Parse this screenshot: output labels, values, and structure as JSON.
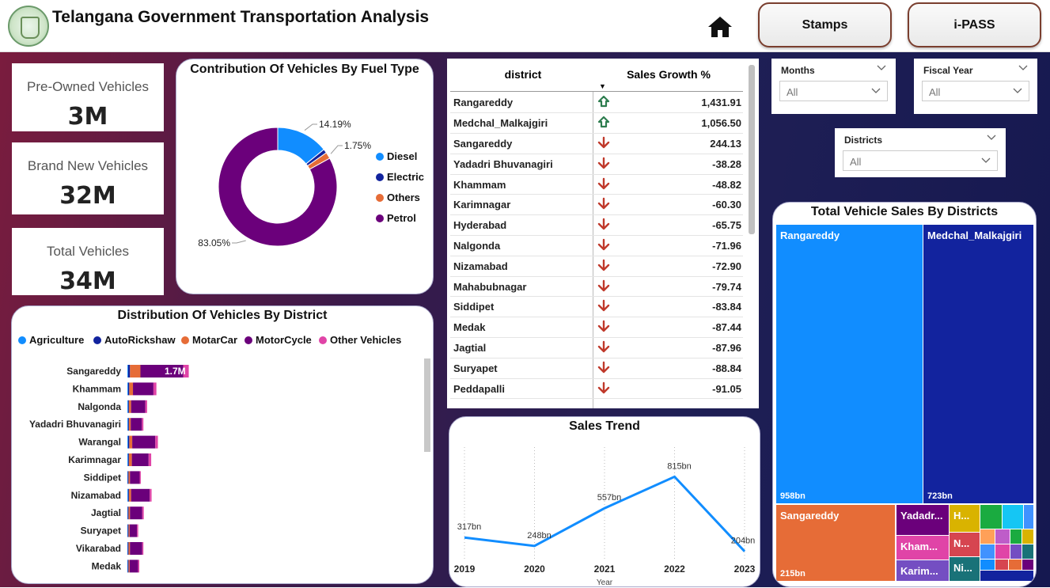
{
  "header": {
    "title": "Telangana Government Transportation Analysis",
    "buttons": {
      "stamps": "Stamps",
      "ipass": "i-PASS"
    }
  },
  "kpis": [
    {
      "label": "Pre-Owned Vehicles",
      "value": "3M"
    },
    {
      "label": "Brand New Vehicles",
      "value": "32M"
    },
    {
      "label": "Total Vehicles",
      "value": "34M"
    }
  ],
  "fuel_chart": {
    "title": "Contribution Of Vehicles By Fuel Type",
    "slices": [
      {
        "name": "Diesel",
        "percent": 14.19,
        "label": "14.19%",
        "color": "#118DFF"
      },
      {
        "name": "Electric",
        "percent": 1.1,
        "label": "",
        "color": "#12239E"
      },
      {
        "name": "Others",
        "percent": 1.75,
        "label": "1.75%",
        "color": "#E66C37"
      },
      {
        "name": "Petrol",
        "percent": 83.05,
        "label": "83.05%",
        "color": "#6B007B"
      }
    ]
  },
  "district_chart": {
    "title": "Distribution Of Vehicles By District",
    "legend": [
      {
        "name": "Agriculture",
        "color": "#118DFF"
      },
      {
        "name": "AutoRickshaw",
        "color": "#12239E"
      },
      {
        "name": "MotarCar",
        "color": "#E66C37"
      },
      {
        "name": "MotorCycle",
        "color": "#6B007B"
      },
      {
        "name": "Other Vehicles",
        "color": "#E044A7"
      }
    ],
    "data_label": "1.7M",
    "rows": [
      {
        "district": "Sangareddy",
        "values": [
          0.02,
          0.05,
          0.28,
          1.15,
          0.15
        ]
      },
      {
        "district": "Khammam",
        "values": [
          0.02,
          0.03,
          0.1,
          0.55,
          0.08
        ]
      },
      {
        "district": "Nalgonda",
        "values": [
          0.02,
          0.02,
          0.06,
          0.38,
          0.05
        ]
      },
      {
        "district": "Yadadri Bhuvanagiri",
        "values": [
          0.02,
          0.02,
          0.05,
          0.3,
          0.04
        ]
      },
      {
        "district": "Warangal",
        "values": [
          0.02,
          0.03,
          0.08,
          0.62,
          0.07
        ]
      },
      {
        "district": "Karimnagar",
        "values": [
          0.02,
          0.02,
          0.08,
          0.45,
          0.07
        ]
      },
      {
        "district": "Siddipet",
        "values": [
          0.01,
          0.02,
          0.04,
          0.26,
          0.03
        ]
      },
      {
        "district": "Nizamabad",
        "values": [
          0.02,
          0.02,
          0.06,
          0.5,
          0.05
        ]
      },
      {
        "district": "Jagtial",
        "values": [
          0.01,
          0.02,
          0.04,
          0.33,
          0.04
        ]
      },
      {
        "district": "Suryapet",
        "values": [
          0.01,
          0.02,
          0.03,
          0.2,
          0.03
        ]
      },
      {
        "district": "Vikarabad",
        "values": [
          0.01,
          0.02,
          0.04,
          0.33,
          0.03
        ]
      },
      {
        "district": "Medak",
        "values": [
          0.01,
          0.02,
          0.03,
          0.23,
          0.03
        ]
      }
    ]
  },
  "growth_table": {
    "headers": {
      "district": "district",
      "growth": "Sales Growth %"
    },
    "rows": [
      {
        "district": "Rangareddy",
        "value": "1,431.91",
        "trend": "up"
      },
      {
        "district": "Medchal_Malkajgiri",
        "value": "1,056.50",
        "trend": "up"
      },
      {
        "district": "Sangareddy",
        "value": "244.13",
        "trend": "down"
      },
      {
        "district": "Yadadri Bhuvanagiri",
        "value": "-38.28",
        "trend": "down"
      },
      {
        "district": "Khammam",
        "value": "-48.82",
        "trend": "down"
      },
      {
        "district": "Karimnagar",
        "value": "-60.30",
        "trend": "down"
      },
      {
        "district": "Hyderabad",
        "value": "-65.75",
        "trend": "down"
      },
      {
        "district": "Nalgonda",
        "value": "-71.96",
        "trend": "down"
      },
      {
        "district": "Nizamabad",
        "value": "-72.90",
        "trend": "down"
      },
      {
        "district": "Mahabubnagar",
        "value": "-79.74",
        "trend": "down"
      },
      {
        "district": "Siddipet",
        "value": "-83.84",
        "trend": "down"
      },
      {
        "district": "Medak",
        "value": "-87.44",
        "trend": "down"
      },
      {
        "district": "Jagtial",
        "value": "-87.96",
        "trend": "down"
      },
      {
        "district": "Suryapet",
        "value": "-88.84",
        "trend": "down"
      },
      {
        "district": "Peddapalli",
        "value": "-91.05",
        "trend": "down"
      }
    ]
  },
  "slicers": [
    {
      "label": "Months",
      "value": "All"
    },
    {
      "label": "Fiscal Year",
      "value": "All"
    },
    {
      "label": "Districts",
      "value": "All"
    }
  ],
  "sales_trend": {
    "title": "Sales Trend",
    "xlabel": "Year",
    "x": [
      "2019",
      "2020",
      "2021",
      "2022",
      "2023"
    ],
    "y": [
      317,
      248,
      557,
      815,
      204
    ],
    "labels": [
      "317bn",
      "248bn",
      "557bn",
      "815bn",
      "204bn"
    ],
    "color": "#118DFF"
  },
  "treemap": {
    "title": "Total Vehicle Sales By Districts",
    "tiles": [
      {
        "name": "Rangareddy",
        "value": "958bn",
        "color": "#118DFF"
      },
      {
        "name": "Medchal_Malkajgiri",
        "value": "723bn",
        "color": "#12239E"
      },
      {
        "name": "Sangareddy",
        "value": "215bn",
        "color": "#E66C37"
      },
      {
        "name": "Yadadr...",
        "value": "",
        "color": "#6B007B"
      },
      {
        "name": "Kham...",
        "value": "",
        "color": "#E044A7"
      },
      {
        "name": "Karim...",
        "value": "",
        "color": "#744EC2"
      },
      {
        "name": "H...",
        "value": "",
        "color": "#D9B300"
      },
      {
        "name": "N...",
        "value": "",
        "color": "#D64550"
      },
      {
        "name": "Ni...",
        "value": "",
        "color": "#197278"
      }
    ]
  }
}
